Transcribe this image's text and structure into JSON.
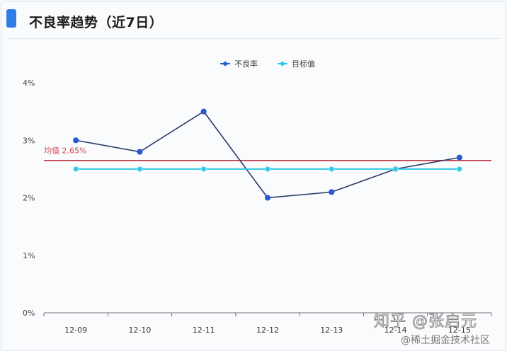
{
  "header": {
    "title": "不良率趋势（近7日）"
  },
  "legend": [
    {
      "label": "不良率",
      "color": "#2a5bd7"
    },
    {
      "label": "目标值",
      "color": "#2ec7e8"
    }
  ],
  "mark_line": {
    "label": "均值",
    "value_label": "2.65%",
    "value": 2.65,
    "color": "#c0303a"
  },
  "watermarks": {
    "line1": "知乎 @张启元",
    "line2": "@稀土掘金技术社区"
  },
  "chart_data": {
    "type": "line",
    "title": "不良率趋势（近7日）",
    "xlabel": "",
    "ylabel": "",
    "categories": [
      "12-09",
      "12-10",
      "12-11",
      "12-12",
      "12-13",
      "12-14",
      "12-15"
    ],
    "series": [
      {
        "name": "不良率",
        "values": [
          3.0,
          2.8,
          3.5,
          2.0,
          2.1,
          2.5,
          2.7
        ],
        "color": "#2a5bd7",
        "line_color": "#2b3a6b"
      },
      {
        "name": "目标值",
        "values": [
          2.5,
          2.5,
          2.5,
          2.5,
          2.5,
          2.5,
          2.5
        ],
        "color": "#2ec7e8"
      }
    ],
    "mark_lines": [
      {
        "name": "均值",
        "value": 2.65,
        "label": "2.65%",
        "color": "#c0303a"
      }
    ],
    "yticks": [
      "0%",
      "1%",
      "2%",
      "3%",
      "4%"
    ],
    "ylim": [
      0,
      4
    ],
    "grid": false,
    "legend_position": "top-center"
  }
}
